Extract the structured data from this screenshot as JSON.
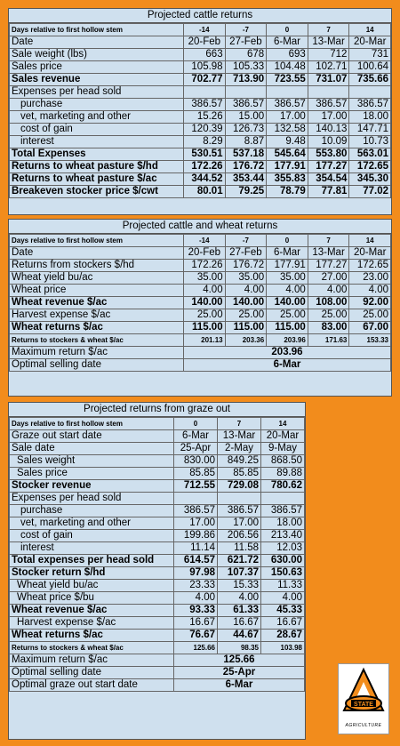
{
  "cattle": {
    "title": "Projected cattle returns",
    "days_label": "Days relative to first hollow stem",
    "days": [
      "-14",
      "-7",
      "0",
      "7",
      "14"
    ],
    "date_label": "Date",
    "dates": [
      "20-Feb",
      "27-Feb",
      "6-Mar",
      "13-Mar",
      "20-Mar"
    ],
    "rows": [
      {
        "label": "Sale weight (lbs)",
        "values": [
          "663",
          "678",
          "693",
          "712",
          "731"
        ]
      },
      {
        "label": "Sales price",
        "values": [
          "105.98",
          "105.33",
          "104.48",
          "102.71",
          "100.64"
        ]
      },
      {
        "label": "Sales revenue",
        "values": [
          "702.77",
          "713.90",
          "723.55",
          "731.07",
          "735.66"
        ],
        "bold": true
      },
      {
        "label": "Expenses per head sold",
        "values": [
          "",
          "",
          "",
          "",
          ""
        ]
      },
      {
        "label": "purchase",
        "values": [
          "386.57",
          "386.57",
          "386.57",
          "386.57",
          "386.57"
        ],
        "indent": true
      },
      {
        "label": "vet, marketing and other",
        "values": [
          "15.26",
          "15.00",
          "17.00",
          "17.00",
          "18.00"
        ],
        "indent": true
      },
      {
        "label": "cost of gain",
        "values": [
          "120.39",
          "126.73",
          "132.58",
          "140.13",
          "147.71"
        ],
        "indent": true
      },
      {
        "label": "interest",
        "values": [
          "8.29",
          "8.87",
          "9.48",
          "10.09",
          "10.73"
        ],
        "indent": true
      },
      {
        "label": "Total Expenses",
        "values": [
          "530.51",
          "537.18",
          "545.64",
          "553.80",
          "563.01"
        ],
        "bold": true
      },
      {
        "label": "Returns to wheat pasture $/hd",
        "values": [
          "172.26",
          "176.72",
          "177.91",
          "177.27",
          "172.65"
        ],
        "bold": true
      },
      {
        "label": "Returns to wheat pasture $/ac",
        "values": [
          "344.52",
          "353.44",
          "355.83",
          "354.54",
          "345.30"
        ],
        "bold": true
      },
      {
        "label": "Breakeven stocker price $/cwt",
        "values": [
          "80.01",
          "79.25",
          "78.79",
          "77.81",
          "77.02"
        ],
        "bold": true
      }
    ]
  },
  "wheat": {
    "title": "Projected cattle and wheat returns",
    "days_label": "Days relative to first hollow stem",
    "days": [
      "-14",
      "-7",
      "0",
      "7",
      "14"
    ],
    "date_label": "Date",
    "dates": [
      "20-Feb",
      "27-Feb",
      "6-Mar",
      "13-Mar",
      "20-Mar"
    ],
    "rows": [
      {
        "label": "Returns from stockers $/hd",
        "values": [
          "172.26",
          "176.72",
          "177.91",
          "177.27",
          "172.65"
        ]
      },
      {
        "label": "Wheat yield bu/ac",
        "values": [
          "35.00",
          "35.00",
          "35.00",
          "27.00",
          "23.00"
        ]
      },
      {
        "label": "Wheat price",
        "values": [
          "4.00",
          "4.00",
          "4.00",
          "4.00",
          "4.00"
        ]
      },
      {
        "label": "Wheat revenue  $/ac",
        "values": [
          "140.00",
          "140.00",
          "140.00",
          "108.00",
          "92.00"
        ],
        "bold": true
      },
      {
        "label": "Harvest expense  $/ac",
        "values": [
          "25.00",
          "25.00",
          "25.00",
          "25.00",
          "25.00"
        ]
      },
      {
        "label": "Wheat returns  $/ac",
        "values": [
          "115.00",
          "115.00",
          "115.00",
          "83.00",
          "67.00"
        ],
        "bold": true
      },
      {
        "label": "Returns to stockers & wheat  $/ac",
        "values": [
          "201.13",
          "203.36",
          "203.96",
          "171.63",
          "153.33"
        ],
        "bold": true,
        "small": true
      }
    ],
    "max_label": "Maximum return $/ac",
    "max_value": "203.96",
    "opt_label": "Optimal selling date",
    "opt_value": "6-Mar"
  },
  "graze": {
    "title": "Projected returns from graze out",
    "days_label": "Days relative to first hollow stem",
    "days": [
      "0",
      "7",
      "14"
    ],
    "start_label": "Graze out start date",
    "start_dates": [
      "6-Mar",
      "13-Mar",
      "20-Mar"
    ],
    "rows": [
      {
        "label": "Sale date",
        "values": [
          "25-Apr",
          "2-May",
          "9-May"
        ],
        "center": true
      },
      {
        "label": "Sales weight",
        "values": [
          "830.00",
          "849.25",
          "868.50"
        ],
        "indent2": true
      },
      {
        "label": "Sales price",
        "values": [
          "85.85",
          "85.85",
          "89.88"
        ],
        "indent2": true
      },
      {
        "label": "Stocker revenue",
        "values": [
          "712.55",
          "729.08",
          "780.62"
        ],
        "bold": true
      },
      {
        "label": "Expenses per head sold",
        "values": [
          "",
          "",
          ""
        ]
      },
      {
        "label": "purchase",
        "values": [
          "386.57",
          "386.57",
          "386.57"
        ],
        "indent": true
      },
      {
        "label": "vet, marketing and other",
        "values": [
          "17.00",
          "17.00",
          "18.00"
        ],
        "indent": true
      },
      {
        "label": "cost of gain",
        "values": [
          "199.86",
          "206.56",
          "213.40"
        ],
        "indent": true
      },
      {
        "label": "interest",
        "values": [
          "11.14",
          "11.58",
          "12.03"
        ],
        "indent": true
      },
      {
        "label": "Total expenses per head sold",
        "values": [
          "614.57",
          "621.72",
          "630.00"
        ],
        "bold": true
      },
      {
        "label": "Stocker return $/hd",
        "values": [
          "97.98",
          "107.37",
          "150.63"
        ],
        "bold": true
      },
      {
        "label": "Wheat yield bu/ac",
        "values": [
          "23.33",
          "15.33",
          "11.33"
        ],
        "indent2": true
      },
      {
        "label": "Wheat price $/bu",
        "values": [
          "4.00",
          "4.00",
          "4.00"
        ],
        "indent2": true
      },
      {
        "label": "Wheat revenue  $/ac",
        "values": [
          "93.33",
          "61.33",
          "45.33"
        ],
        "bold": true
      },
      {
        "label": "Harvest expense  $/ac",
        "values": [
          "16.67",
          "16.67",
          "16.67"
        ],
        "indent2": true
      },
      {
        "label": "Wheat returns  $/ac",
        "values": [
          "76.67",
          "44.67",
          "28.67"
        ],
        "bold": true
      },
      {
        "label": "Returns to stockers & wheat  $/ac",
        "values": [
          "125.66",
          "98.35",
          "103.98"
        ],
        "bold": true,
        "small": true
      }
    ],
    "max_label": "Maximum return $/ac",
    "max_value": "125.66",
    "opt_label": "Optimal selling date",
    "opt_value": "25-Apr",
    "opt_start_label": "Optimal graze out start date",
    "opt_start_value": "6-Mar"
  },
  "logo": {
    "name": "osu-agriculture-logo",
    "text": "AGRICULTURE",
    "colors": {
      "orange": "#f28c1c",
      "black": "#000000"
    }
  }
}
